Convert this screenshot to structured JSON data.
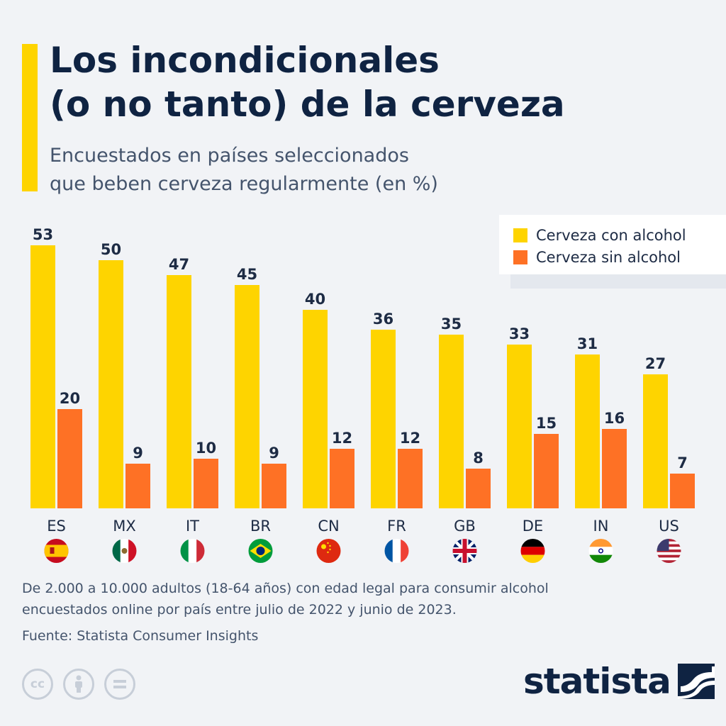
{
  "header": {
    "title_line1": "Los incondicionales",
    "title_line2": "(o no tanto) de la cerveza",
    "subtitle_line1": "Encuestados en países seleccionados",
    "subtitle_line2": "que beben cerveza regularmente (en %)"
  },
  "legend": {
    "items": [
      {
        "label": "Cerveza con alcohol",
        "color": "#fed400"
      },
      {
        "label": "Cerveza sin alcohol",
        "color": "#fe7125"
      }
    ]
  },
  "chart_data": {
    "type": "bar",
    "categories": [
      "ES",
      "MX",
      "IT",
      "BR",
      "CN",
      "FR",
      "GB",
      "DE",
      "IN",
      "US"
    ],
    "flags": [
      "flag-spain-icon",
      "flag-mexico-icon",
      "flag-italy-icon",
      "flag-brazil-icon",
      "flag-china-icon",
      "flag-france-icon",
      "flag-uk-icon",
      "flag-germany-icon",
      "flag-india-icon",
      "flag-usa-icon"
    ],
    "series": [
      {
        "name": "Cerveza con alcohol",
        "values": [
          53,
          50,
          47,
          45,
          40,
          36,
          35,
          33,
          31,
          27
        ],
        "color": "#fed400"
      },
      {
        "name": "Cerveza sin alcohol",
        "values": [
          20,
          9,
          10,
          9,
          12,
          12,
          8,
          15,
          16,
          7
        ],
        "color": "#fe7125"
      }
    ],
    "ylim": [
      0,
      53
    ],
    "legend_position": "top-right",
    "grid": false
  },
  "footer": {
    "note_line1": "De 2.000 a 10.000 adultos (18-64 años) con edad legal para consumir alcohol",
    "note_line2": "encuestados online por país entre julio de 2022 y junio de 2023.",
    "source": "Fuente: Statista Consumer Insights",
    "brand": "statista",
    "cc_icons": [
      "cc-icon",
      "attribution-icon",
      "no-derivatives-icon"
    ]
  }
}
